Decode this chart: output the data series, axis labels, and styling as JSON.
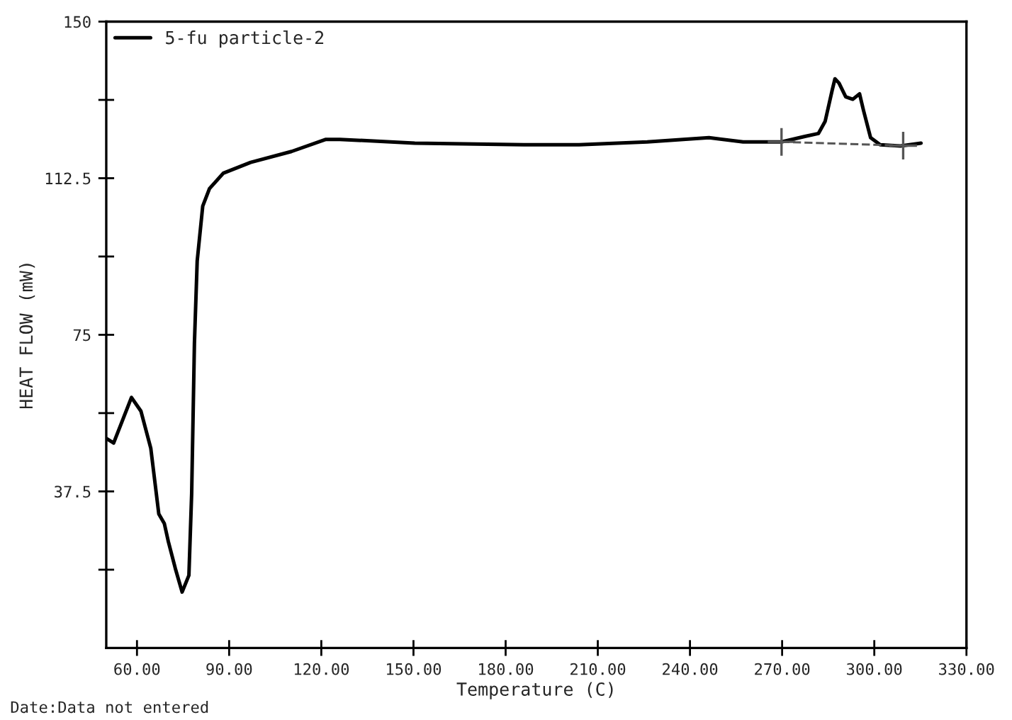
{
  "chart_data": {
    "type": "line",
    "xlabel": "Temperature (C)",
    "ylabel": "HEAT FLOW (mW)",
    "annotations": [
      "Date:Data not entered"
    ],
    "xlim": [
      50,
      330
    ],
    "ylim": [
      0,
      150
    ],
    "xticks": [
      {
        "value": 60,
        "label": "60.00"
      },
      {
        "value": 90,
        "label": "90.00"
      },
      {
        "value": 120,
        "label": "120.00"
      },
      {
        "value": 150,
        "label": "150.00"
      },
      {
        "value": 180,
        "label": "180.00"
      },
      {
        "value": 210,
        "label": "210.00"
      },
      {
        "value": 240,
        "label": "240.00"
      },
      {
        "value": 270,
        "label": "270.00"
      },
      {
        "value": 300,
        "label": "300.00"
      },
      {
        "value": 330,
        "label": "330.00"
      }
    ],
    "yticks": [
      {
        "value": 18.75,
        "label": null
      },
      37.5,
      {
        "value": 56.25,
        "label": null
      },
      75,
      {
        "value": 93.75,
        "label": null
      },
      112.5,
      {
        "value": 131.25,
        "label": null
      },
      150
    ],
    "grid": false,
    "legend": "top left",
    "series": [
      {
        "name": "5-fu particle-2",
        "color": "#000000",
        "line_style": "solid",
        "marker": "none",
        "x": [
          50.2,
          52.4,
          58.2,
          61.3,
          64.5,
          67.1,
          68.9,
          70.2,
          72.5,
          74.7,
          76.9,
          77.8,
          78.7,
          79.6,
          81.4,
          83.6,
          88.1,
          97,
          110.3,
          121.5,
          126,
          150.4,
          186,
          203.9,
          226.1,
          246.2,
          257.3,
          269.8,
          277.4,
          281.8,
          284,
          286.3,
          287.2,
          288.5,
          290.7,
          293,
          295.2,
          296.5,
          298.8,
          301.9,
          308.5,
          315.2
        ],
        "values": [
          50.1,
          49.1,
          60,
          56.7,
          47.8,
          32.1,
          29.8,
          25.5,
          19,
          13.4,
          17.4,
          37,
          73,
          92.7,
          105.8,
          110,
          113.7,
          116.3,
          118.9,
          121.8,
          121.8,
          120.9,
          120.5,
          120.5,
          121.2,
          122.2,
          121.2,
          121.2,
          122.5,
          123.2,
          126.1,
          133.6,
          136.3,
          135.3,
          132,
          131.4,
          132.7,
          128.7,
          122.2,
          120.5,
          120.2,
          120.9
        ]
      },
      {
        "color": "#555555",
        "line_style": "dashed",
        "marker": "cross",
        "x": [
          269.8,
          309.4
        ],
        "values": [
          121.2,
          120.3
        ]
      }
    ]
  }
}
